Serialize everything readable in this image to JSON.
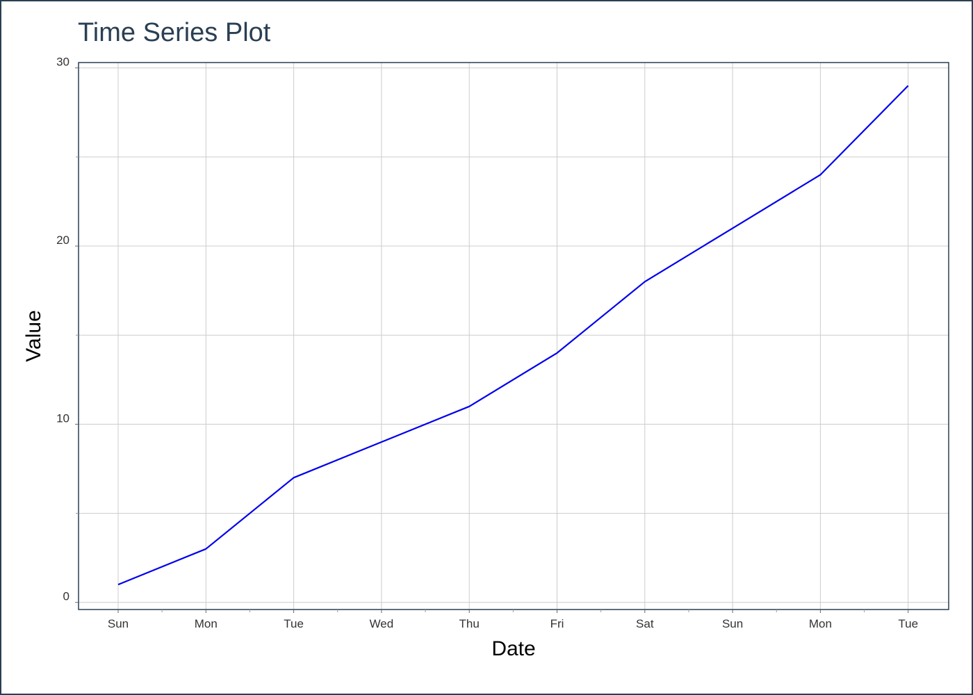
{
  "chart_data": {
    "type": "line",
    "title": "Time Series Plot",
    "xlabel": "Date",
    "ylabel": "Value",
    "categories": [
      "Sun",
      "Mon",
      "Tue",
      "Wed",
      "Thu",
      "Fri",
      "Sat",
      "Sun",
      "Mon",
      "Tue"
    ],
    "series": [
      {
        "values": [
          1,
          3,
          7,
          9,
          11,
          14,
          18,
          21,
          24,
          29
        ]
      }
    ],
    "ylim": [
      -0.4,
      30.3
    ],
    "yticks": [
      0,
      10,
      20,
      30
    ],
    "grid": true,
    "colors": {
      "line": "#0000ee",
      "grid": "#cccccc",
      "frame": "#2a3f54",
      "title": "#2a3f54"
    }
  }
}
